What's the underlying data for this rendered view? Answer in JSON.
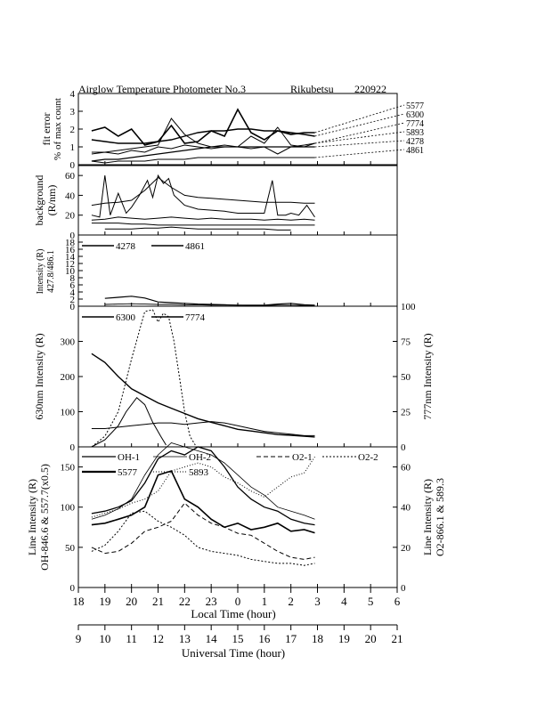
{
  "figure": {
    "title": "Airglow Temperature Photometer No.3",
    "site": "Rikubetsu",
    "date": "220922"
  },
  "chart_data": [
    {
      "id": "fit_error",
      "type": "line",
      "ylabel": "fit error",
      "ylabel2": "% of max count",
      "ylim": [
        0,
        4
      ],
      "yticks": [
        "0",
        "1",
        "2",
        "3",
        "4"
      ],
      "xlim": [
        18,
        30
      ],
      "series": [
        {
          "name": "5577",
          "x": [
            18.5,
            19,
            19.5,
            20,
            20.5,
            21,
            21.5,
            22,
            22.5,
            23,
            23.5,
            24,
            24.5,
            25,
            25.5,
            26,
            26.5,
            26.9
          ],
          "y": [
            1.9,
            2.1,
            1.6,
            2.0,
            1.1,
            1.3,
            2.2,
            1.2,
            1.3,
            1.9,
            1.6,
            3.1,
            1.8,
            1.4,
            1.9,
            1.7,
            1.8,
            1.8
          ]
        },
        {
          "name": "6300",
          "x": [
            18.5,
            19,
            19.5,
            20,
            20.5,
            21,
            21.5,
            22,
            22.5,
            23,
            23.5,
            24,
            24.5,
            25,
            25.5,
            26,
            26.5,
            26.9
          ],
          "y": [
            1.4,
            1.3,
            1.2,
            1.2,
            1.2,
            1.3,
            1.4,
            1.6,
            1.8,
            1.9,
            1.9,
            2.0,
            2.0,
            1.9,
            1.9,
            1.8,
            1.7,
            1.6
          ]
        },
        {
          "name": "7774",
          "x": [
            18.5,
            19,
            19.5,
            20,
            20.5,
            21,
            21.5,
            22,
            22.5,
            23,
            23.5,
            24,
            24.5,
            25,
            25.5,
            26,
            26.5,
            26.9
          ],
          "y": [
            0.7,
            0.7,
            0.8,
            0.9,
            1.0,
            1.1,
            2.6,
            1.7,
            1.2,
            1.0,
            1.1,
            1.0,
            1.6,
            1.2,
            2.1,
            1.1,
            1.0,
            1.2
          ]
        },
        {
          "name": "5893",
          "x": [
            18.5,
            19,
            19.5,
            20,
            20.5,
            21,
            21.5,
            22,
            22.5,
            23,
            23.5,
            24,
            24.5,
            25,
            25.5,
            26,
            26.5,
            26.9
          ],
          "y": [
            0.6,
            0.7,
            0.6,
            0.8,
            0.7,
            1.0,
            0.9,
            1.1,
            1.0,
            0.9,
            1.0,
            1.0,
            0.9,
            1.0,
            0.6,
            1.0,
            1.1,
            1.2
          ]
        },
        {
          "name": "4278",
          "x": [
            18.5,
            19,
            19.5,
            20,
            20.5,
            21,
            21.5,
            22,
            22.5,
            23,
            23.5,
            24,
            24.5,
            25,
            25.5,
            26,
            26.5,
            26.9
          ],
          "y": [
            0.2,
            0.3,
            0.3,
            0.4,
            0.5,
            0.6,
            0.7,
            0.8,
            0.9,
            1.0,
            1.0,
            1.0,
            1.0,
            1.0,
            1.0,
            1.0,
            1.0,
            1.0
          ]
        },
        {
          "name": "4861",
          "x": [
            18.5,
            19,
            19.5,
            20,
            20.5,
            21,
            21.5,
            22,
            22.5,
            23,
            23.5,
            24,
            24.5,
            25,
            25.5,
            26,
            26.5,
            26.9
          ],
          "y": [
            0.2,
            0.1,
            0.2,
            0.2,
            0.2,
            0.3,
            0.3,
            0.3,
            0.4,
            0.4,
            0.4,
            0.4,
            0.4,
            0.4,
            0.4,
            0.4,
            0.4,
            0.4
          ]
        }
      ],
      "right_labels": [
        "5577",
        "6300",
        "7774",
        "5893",
        "4278",
        "4861"
      ]
    },
    {
      "id": "background",
      "type": "line",
      "ylabel": "background",
      "ylabel2": "(R/nm)",
      "ylim": [
        0,
        70
      ],
      "yticks": [
        "0",
        "20",
        "40",
        "60"
      ],
      "series": [
        {
          "name": "bg1",
          "x": [
            18.5,
            18.8,
            19,
            19.2,
            19.5,
            19.8,
            20,
            20.3,
            20.6,
            20.8,
            21,
            21.2,
            21.4,
            21.6,
            22,
            22.5,
            23,
            23.5,
            24,
            24.5,
            25,
            25.3,
            25.5,
            25.8,
            26,
            26.3,
            26.6,
            26.9
          ],
          "y": [
            20,
            18,
            60,
            20,
            42,
            22,
            28,
            40,
            55,
            38,
            60,
            52,
            57,
            40,
            30,
            26,
            25,
            24,
            22,
            22,
            22,
            55,
            20,
            20,
            22,
            20,
            30,
            18
          ]
        },
        {
          "name": "bg2",
          "x": [
            18.5,
            19,
            19.5,
            20,
            20.5,
            21,
            21.5,
            22,
            22.5,
            23,
            23.5,
            24,
            24.5,
            25,
            25.5,
            26,
            26.5,
            26.9
          ],
          "y": [
            30,
            32,
            33,
            35,
            45,
            58,
            48,
            40,
            38,
            37,
            36,
            35,
            34,
            33,
            33,
            33,
            32,
            32
          ]
        },
        {
          "name": "bg3",
          "x": [
            18.5,
            19,
            19.5,
            20,
            20.5,
            21,
            21.5,
            22,
            22.5,
            23,
            23.5,
            24,
            24.5,
            25,
            25.5,
            26,
            26.5,
            26.9
          ],
          "y": [
            15,
            16,
            18,
            17,
            16,
            17,
            18,
            17,
            16,
            17,
            16,
            16,
            16,
            15,
            16,
            15,
            16,
            15
          ]
        },
        {
          "name": "bg4",
          "x": [
            18.5,
            19,
            19.5,
            20,
            20.5,
            21,
            21.5,
            22,
            22.5,
            23,
            23.5,
            24,
            24.5,
            25,
            25.5,
            26,
            26.5,
            26.9
          ],
          "y": [
            12,
            12,
            12,
            11,
            11,
            10,
            10,
            10,
            10,
            10,
            10,
            10,
            10,
            10,
            10,
            10,
            10,
            10
          ]
        },
        {
          "name": "bg5",
          "x": [
            19,
            19.5,
            20,
            20.5,
            21,
            21.5,
            22,
            22.5,
            23,
            23.5,
            24,
            24.5,
            25,
            25.5,
            26
          ],
          "y": [
            6,
            6,
            6,
            7,
            7,
            8,
            7,
            6,
            6,
            6,
            6,
            6,
            6,
            5,
            5
          ]
        }
      ]
    },
    {
      "id": "intensity_blue",
      "type": "line",
      "ylabel": "Intensity (R)",
      "ylabel2": "427.8/486.1",
      "ylim": [
        0,
        20
      ],
      "yticks": [
        "0",
        "2",
        "4",
        "6",
        "8",
        "10",
        "12",
        "14",
        "16",
        "18"
      ],
      "ytick_values": [
        0,
        2,
        4,
        6,
        8,
        10,
        12,
        14,
        16,
        18
      ],
      "legend": [
        "4278",
        "4861"
      ],
      "series": [
        {
          "name": "4278",
          "x": [
            19,
            19.5,
            20,
            20.5,
            21,
            21.5,
            22,
            22.5,
            23,
            23.5,
            24,
            24.5,
            25,
            25.5,
            26,
            26.5,
            26.9
          ],
          "y": [
            2.2,
            2.5,
            2.8,
            2.3,
            1.2,
            1.0,
            0.8,
            0.6,
            0.5,
            0.4,
            0.3,
            0.3,
            0.3,
            0.6,
            0.8,
            0.4,
            0.3
          ]
        },
        {
          "name": "4861",
          "x": [
            19,
            19.5,
            20,
            20.5,
            21,
            21.5,
            22,
            22.5,
            23,
            23.5,
            24,
            24.5,
            25,
            25.5,
            26,
            26.5,
            26.9
          ],
          "y": [
            0.5,
            0.6,
            0.7,
            0.6,
            0.5,
            0.5,
            0.4,
            0.4,
            0.3,
            0.3,
            0.3,
            0.2,
            0.2,
            0.3,
            0.3,
            0.2,
            0.2
          ]
        }
      ]
    },
    {
      "id": "oxygen",
      "type": "line",
      "ylabel": "630nm Intensity (R)",
      "ylabel_right": "777nm Intensity (R)",
      "ylim": [
        0,
        400
      ],
      "yticks": [
        "0",
        "100",
        "200",
        "300"
      ],
      "ytick_values": [
        0,
        100,
        200,
        300
      ],
      "ylim_right": [
        0,
        100
      ],
      "yticks_right": [
        "0",
        "25",
        "50",
        "75",
        "100"
      ],
      "ytick_values_right": [
        0,
        25,
        50,
        75,
        100
      ],
      "legend": [
        "6300",
        "7774"
      ],
      "series": [
        {
          "name": "6300",
          "x": [
            18.5,
            19,
            19.5,
            20,
            20.5,
            21,
            21.5,
            22,
            22.5,
            23,
            23.5,
            24,
            24.5,
            25,
            25.5,
            26,
            26.5,
            26.9
          ],
          "y": [
            265,
            240,
            200,
            165,
            145,
            125,
            110,
            95,
            80,
            70,
            60,
            50,
            45,
            40,
            35,
            33,
            30,
            28
          ]
        },
        {
          "name": "6300-early",
          "x": [
            18.5,
            19,
            19.5,
            19.8,
            20.2,
            20.5,
            20.8,
            21.1,
            21.3
          ],
          "y": [
            0,
            20,
            60,
            100,
            140,
            120,
            70,
            30,
            5
          ]
        },
        {
          "name": "7774",
          "x": [
            18.5,
            19,
            19.5,
            20,
            20.5,
            21,
            21.5,
            22,
            22.5,
            23,
            23.5,
            24,
            24.5,
            25,
            25.5,
            26,
            26.5,
            26.9
          ],
          "y": [
            13,
            13,
            14,
            15,
            16,
            17,
            17,
            16,
            17,
            18,
            17,
            15,
            13,
            11,
            10,
            9,
            8,
            8
          ],
          "axis": "right"
        },
        {
          "name": "dashed",
          "x": [
            18.5,
            19,
            19.5,
            20,
            20.5,
            20.8,
            21,
            21.2,
            21.4,
            21.6,
            21.8,
            22,
            22.2,
            22.4
          ],
          "y": [
            0,
            30,
            100,
            250,
            385,
            390,
            355,
            380,
            370,
            300,
            200,
            100,
            30,
            5
          ],
          "style": "dotted"
        }
      ]
    },
    {
      "id": "line_intensity",
      "type": "line",
      "ylabel": "Line Intensity (R)",
      "ylabel2": "OH-846.6 & 557.7(x0.5)",
      "ylabel_right": "Line Intensity (R)",
      "ylabel_right2": "O2-866.1 & 589.3",
      "ylim": [
        0,
        175
      ],
      "yticks": [
        "0",
        "50",
        "100",
        "150"
      ],
      "ytick_values": [
        0,
        50,
        100,
        150
      ],
      "ylim_right": [
        0,
        70
      ],
      "yticks_right": [
        "0",
        "20",
        "40",
        "60"
      ],
      "ytick_values_right": [
        0,
        20,
        40,
        60
      ],
      "legend": [
        "OH-1",
        "OH-2",
        "O2-1",
        "O2-2",
        "5577",
        "5893"
      ],
      "series": [
        {
          "name": "OH-1",
          "x": [
            18.5,
            19,
            19.5,
            20,
            20.5,
            21,
            21.5,
            22,
            22.5,
            23,
            23.5,
            24,
            24.5,
            25,
            25.5,
            26,
            26.5,
            26.9
          ],
          "y": [
            92,
            95,
            100,
            108,
            130,
            160,
            170,
            165,
            175,
            170,
            150,
            125,
            110,
            100,
            95,
            85,
            80,
            78
          ]
        },
        {
          "name": "OH-2",
          "x": [
            18.5,
            19,
            19.5,
            20,
            20.5,
            21,
            21.5,
            22,
            22.5,
            23,
            23.5,
            24,
            24.5,
            25,
            25.5,
            26,
            26.5,
            26.9
          ],
          "y": [
            85,
            90,
            98,
            110,
            140,
            165,
            180,
            175,
            170,
            165,
            155,
            140,
            125,
            115,
            100,
            95,
            90,
            85
          ]
        },
        {
          "name": "O2-1",
          "x": [
            18.5,
            19,
            19.5,
            20,
            20.5,
            21,
            21.5,
            22,
            22.5,
            23,
            23.5,
            24,
            24.5,
            25,
            25.5,
            26,
            26.5,
            26.9
          ],
          "y": [
            20,
            17,
            18,
            22,
            28,
            30,
            33,
            42,
            36,
            32,
            30,
            27,
            26,
            22,
            18,
            15,
            14,
            15
          ],
          "axis": "right",
          "style": "dashed"
        },
        {
          "name": "O2-2",
          "x": [
            18.5,
            19,
            19.5,
            20,
            20.5,
            21,
            21.5,
            22,
            22.5,
            23,
            23.5,
            24,
            24.5,
            25,
            25.5,
            26,
            26.5,
            26.9
          ],
          "y": [
            18,
            21,
            28,
            37,
            38,
            33,
            30,
            26,
            20,
            18,
            17,
            16,
            14,
            13,
            12,
            12,
            11,
            12
          ],
          "axis": "right",
          "style": "dotted"
        },
        {
          "name": "5577",
          "x": [
            18.5,
            19,
            19.5,
            20,
            20.5,
            21,
            21.5,
            22,
            22.5,
            23,
            23.5,
            24,
            24.5,
            25,
            25.5,
            26,
            26.5,
            26.9
          ],
          "y": [
            78,
            80,
            85,
            90,
            100,
            140,
            145,
            110,
            100,
            85,
            75,
            80,
            72,
            75,
            80,
            70,
            72,
            68
          ]
        },
        {
          "name": "5893",
          "x": [
            18.5,
            19,
            19.5,
            20,
            20.5,
            21,
            21.5,
            22,
            22.5,
            23,
            23.5,
            24,
            24.5,
            25,
            25.5,
            26,
            26.5,
            26.9
          ],
          "y": [
            35,
            37,
            39,
            42,
            44,
            48,
            58,
            60,
            62,
            60,
            55,
            52,
            48,
            45,
            50,
            55,
            57,
            65
          ],
          "axis": "right",
          "style": "fine-dotted"
        }
      ]
    }
  ],
  "axes": {
    "local_time": {
      "label": "Local Time (hour)",
      "ticks": [
        "18",
        "19",
        "20",
        "21",
        "22",
        "23",
        "0",
        "1",
        "2",
        "3",
        "4",
        "5",
        "6"
      ]
    },
    "universal_time": {
      "label": "Universal Time (hour)",
      "ticks": [
        "9",
        "10",
        "11",
        "12",
        "13",
        "14",
        "15",
        "16",
        "17",
        "18",
        "19",
        "20",
        "21"
      ]
    }
  }
}
